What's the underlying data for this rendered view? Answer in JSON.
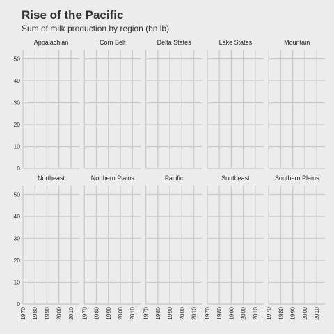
{
  "chart_data": {
    "type": "line",
    "title": "Rise of the Pacific",
    "subtitle": "Sum of milk production by region (bn lb)",
    "xlabel": "",
    "ylabel": "",
    "facets": [
      "Appalachian",
      "Corn Belt",
      "Delta States",
      "Lake States",
      "Mountain",
      "Northeast",
      "Northern Plains",
      "Pacific",
      "Southeast",
      "Southern Plains"
    ],
    "x_ticks": [
      "1970",
      "1980",
      "1990",
      "2000",
      "2010"
    ],
    "y_ticks": [
      "0",
      "10",
      "20",
      "30",
      "40",
      "50"
    ],
    "xlim": [
      1970,
      2017
    ],
    "ylim": [
      0,
      54
    ],
    "grid": true,
    "series": []
  }
}
